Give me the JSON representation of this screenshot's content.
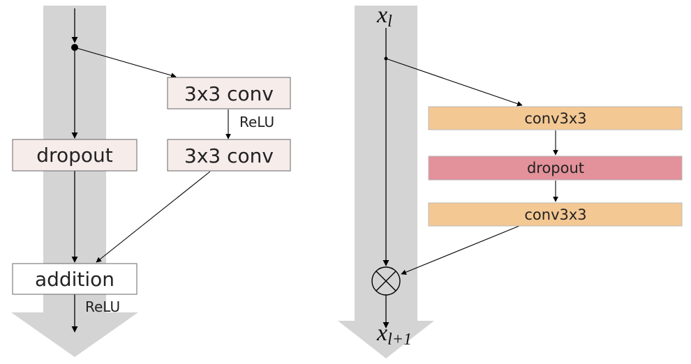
{
  "colors": {
    "background": "#ffffff",
    "highway": "#d4d4d4",
    "line": "#000000",
    "box_stroke": "#666666",
    "box_light_fill": "#f6ecea",
    "box_white_fill": "#ffffff",
    "conv_fill": "#f4c893",
    "dropout_fill": "#e3919a"
  },
  "left": {
    "conv_top": "3x3 conv",
    "relu_mid": "ReLU",
    "conv_bottom": "3x3 conv",
    "dropout": "dropout",
    "addition": "addition",
    "relu_out": "ReLU"
  },
  "right": {
    "input_base": "x",
    "input_sub": "l",
    "conv_top": "conv3x3",
    "dropout": "dropout",
    "conv_bottom": "conv3x3",
    "output_base": "x",
    "output_sub": "l+1",
    "merge_symbol": "multiply-circle-icon"
  }
}
